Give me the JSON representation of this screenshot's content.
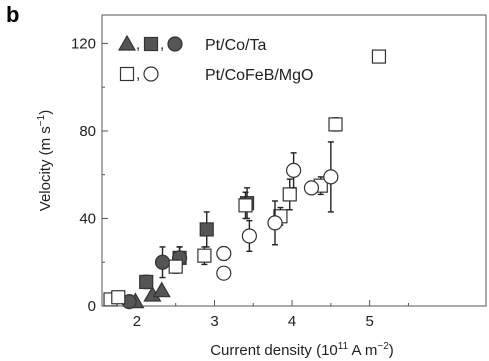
{
  "panel_label": "b",
  "chart_data": {
    "type": "scatter",
    "xlabel": "Current density (10",
    "xlabel_exp": "11",
    "xlabel_unit": " A m",
    "xlabel_unit_exp": "−2",
    "xlabel_end": ")",
    "ylabel": "Velocity (m s",
    "ylabel_exp": "−1",
    "ylabel_end": ")",
    "xlim": [
      1.55,
      6.5
    ],
    "ylim": [
      0,
      133
    ],
    "xticks": [
      2,
      3,
      4,
      5
    ],
    "yticks": [
      0,
      40,
      80,
      120
    ],
    "legend_placement": "top-left",
    "legend": [
      {
        "label": "Pt/Co/Ta",
        "markers": [
          "triangle",
          "square",
          "circle"
        ],
        "filled": true,
        "separator": ", "
      },
      {
        "label": "Pt/CoFeB/MgO",
        "markers": [
          "square",
          "circle"
        ],
        "filled": false,
        "separator": ", "
      }
    ],
    "series": [
      {
        "name": "Pt/Co/Ta",
        "marker": "triangle",
        "filled": true,
        "color": "#555555",
        "points": [
          {
            "x": 1.98,
            "y": 2
          },
          {
            "x": 2.2,
            "y": 5
          },
          {
            "x": 2.32,
            "y": 7
          }
        ]
      },
      {
        "name": "Pt/Co/Ta",
        "marker": "square",
        "filled": true,
        "color": "#555555",
        "points": [
          {
            "x": 2.12,
            "y": 11,
            "err": 3
          },
          {
            "x": 2.55,
            "y": 22,
            "err": 5
          },
          {
            "x": 2.9,
            "y": 35,
            "err": 8
          },
          {
            "x": 3.42,
            "y": 47,
            "err": 7
          }
        ]
      },
      {
        "name": "Pt/Co/Ta",
        "marker": "circle",
        "filled": true,
        "color": "#555555",
        "points": [
          {
            "x": 1.9,
            "y": 2
          },
          {
            "x": 2.33,
            "y": 20,
            "err": 7
          },
          {
            "x": 2.55,
            "y": 22,
            "err": 5
          }
        ]
      },
      {
        "name": "Pt/CoFeB/MgO",
        "marker": "square",
        "filled": false,
        "color": "#333333",
        "points": [
          {
            "x": 1.66,
            "y": 3
          },
          {
            "x": 1.76,
            "y": 4
          },
          {
            "x": 2.5,
            "y": 18,
            "err": 3
          },
          {
            "x": 2.87,
            "y": 23,
            "err": 4
          },
          {
            "x": 3.4,
            "y": 46,
            "err": 6
          },
          {
            "x": 3.85,
            "y": 41,
            "err": 4
          },
          {
            "x": 3.97,
            "y": 51,
            "err": 7
          },
          {
            "x": 4.37,
            "y": 55,
            "err": 4
          },
          {
            "x": 4.56,
            "y": 83,
            "err": 3
          },
          {
            "x": 5.12,
            "y": 114
          }
        ]
      },
      {
        "name": "Pt/CoFeB/MgO",
        "marker": "circle",
        "filled": false,
        "color": "#333333",
        "points": [
          {
            "x": 3.12,
            "y": 15
          },
          {
            "x": 3.12,
            "y": 24,
            "err": 3
          },
          {
            "x": 3.45,
            "y": 32,
            "err": 7
          },
          {
            "x": 3.78,
            "y": 38,
            "err": 10
          },
          {
            "x": 4.02,
            "y": 62,
            "err": 8
          },
          {
            "x": 4.25,
            "y": 54,
            "err": 3
          },
          {
            "x": 4.5,
            "y": 59,
            "err": 16
          }
        ]
      }
    ]
  }
}
